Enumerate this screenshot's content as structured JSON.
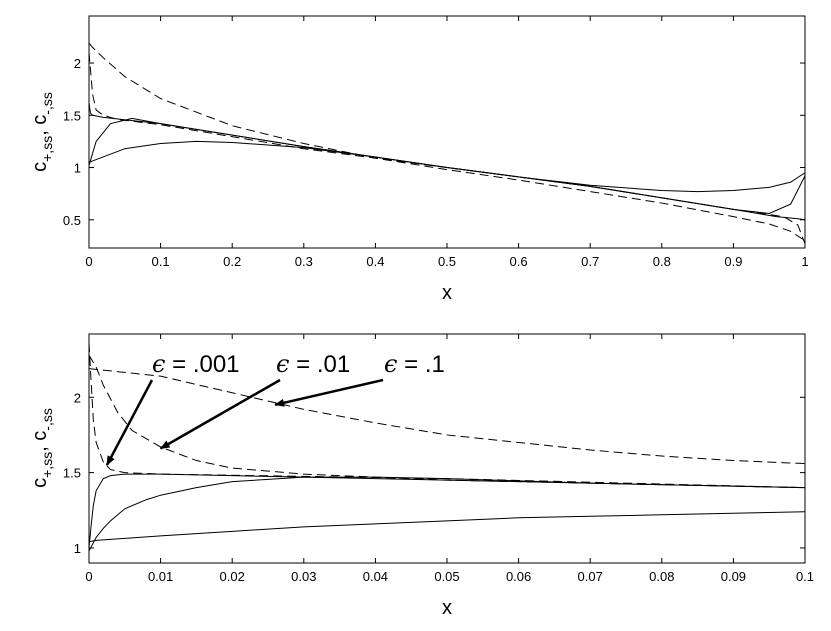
{
  "chart_data": [
    {
      "type": "line",
      "xlabel": "x",
      "ylabel": {
        "base1": "c",
        "sub1": "+,ss",
        "sep": ", ",
        "base2": "c",
        "sub2": "-,ss"
      },
      "xlim": [
        0,
        1
      ],
      "ylim": [
        0.23,
        2.45
      ],
      "xticks": [
        "0",
        "0.1",
        "0.2",
        "0.3",
        "0.4",
        "0.5",
        "0.6",
        "0.7",
        "0.8",
        "0.9",
        "1"
      ],
      "xtick_values": [
        0,
        0.1,
        0.2,
        0.3,
        0.4,
        0.5,
        0.6,
        0.7,
        0.8,
        0.9,
        1
      ],
      "yticks": [
        "0.5",
        "1",
        "1.5",
        "2"
      ],
      "ytick_values": [
        0.5,
        1,
        1.5,
        2
      ],
      "grid": false,
      "series": [
        {
          "style": "dashed",
          "x": [
            0,
            0.005,
            0.02,
            0.05,
            0.1,
            0.2,
            0.3,
            0.4,
            0.5,
            0.6,
            0.7,
            0.8,
            0.9,
            0.95,
            0.98,
            1
          ],
          "y": [
            2.19,
            2.15,
            2.05,
            1.87,
            1.66,
            1.4,
            1.23,
            1.09,
            0.98,
            0.88,
            0.77,
            0.66,
            0.53,
            0.46,
            0.39,
            0.3
          ]
        },
        {
          "style": "dashed",
          "x": [
            0,
            0.005,
            0.01,
            0.02,
            0.04,
            0.1,
            0.3,
            0.5,
            0.7,
            0.9,
            0.97,
            0.99,
            1
          ],
          "y": [
            2.1,
            1.7,
            1.55,
            1.5,
            1.46,
            1.41,
            1.18,
            1.0,
            0.82,
            0.6,
            0.53,
            0.45,
            0.27
          ]
        },
        {
          "style": "solid",
          "x": [
            0,
            0.002,
            0.005,
            0.02,
            0.1,
            0.3,
            0.5,
            0.7,
            0.9,
            0.96,
            0.99,
            1
          ],
          "y": [
            1.62,
            1.52,
            1.5,
            1.48,
            1.42,
            1.2,
            1.0,
            0.82,
            0.6,
            0.53,
            0.51,
            0.5
          ]
        },
        {
          "style": "solid",
          "x": [
            0,
            0.01,
            0.03,
            0.06,
            0.1,
            0.3,
            0.5,
            0.7,
            0.9,
            0.95,
            0.98,
            1
          ],
          "y": [
            1.02,
            1.25,
            1.42,
            1.47,
            1.42,
            1.2,
            1.0,
            0.82,
            0.6,
            0.56,
            0.65,
            0.92
          ]
        },
        {
          "style": "solid",
          "x": [
            0,
            0.05,
            0.1,
            0.15,
            0.2,
            0.3,
            0.4,
            0.5,
            0.6,
            0.7,
            0.8,
            0.85,
            0.9,
            0.95,
            0.98,
            1
          ],
          "y": [
            1.05,
            1.18,
            1.23,
            1.25,
            1.24,
            1.19,
            1.1,
            1.0,
            0.91,
            0.83,
            0.78,
            0.77,
            0.78,
            0.81,
            0.86,
            0.95
          ]
        }
      ]
    },
    {
      "type": "line",
      "xlabel": "x",
      "ylabel": {
        "base1": "c",
        "sub1": "+,ss",
        "sep": ", ",
        "base2": "c",
        "sub2": "-,ss"
      },
      "xlim": [
        0,
        0.1
      ],
      "ylim": [
        0.9,
        2.42
      ],
      "xticks": [
        "0",
        "0.01",
        "0.02",
        "0.03",
        "0.04",
        "0.05",
        "0.06",
        "0.07",
        "0.08",
        "0.09",
        "0.1"
      ],
      "xtick_values": [
        0,
        0.01,
        0.02,
        0.03,
        0.04,
        0.05,
        0.06,
        0.07,
        0.08,
        0.09,
        0.1
      ],
      "yticks": [
        "1",
        "1.5",
        "2"
      ],
      "ytick_values": [
        1,
        1.5,
        2
      ],
      "grid": false,
      "series": [
        {
          "style": "dashed",
          "x": [
            0,
            0.01,
            0.02,
            0.03,
            0.04,
            0.05,
            0.06,
            0.07,
            0.08,
            0.09,
            0.1
          ],
          "y": [
            2.19,
            2.14,
            2.03,
            1.92,
            1.83,
            1.75,
            1.7,
            1.65,
            1.61,
            1.58,
            1.56
          ]
        },
        {
          "style": "dashed",
          "x": [
            0,
            0.001,
            0.002,
            0.004,
            0.006,
            0.01,
            0.015,
            0.02,
            0.03,
            0.04,
            0.05,
            0.06,
            0.08,
            0.1
          ],
          "y": [
            2.28,
            2.2,
            2.08,
            1.9,
            1.78,
            1.67,
            1.58,
            1.53,
            1.49,
            1.47,
            1.45,
            1.44,
            1.42,
            1.4
          ]
        },
        {
          "style": "dashed",
          "x": [
            0,
            0.0003,
            0.0006,
            0.001,
            0.002,
            0.003,
            0.005,
            0.01,
            0.05,
            0.1
          ],
          "y": [
            2.36,
            2.1,
            1.85,
            1.7,
            1.57,
            1.52,
            1.5,
            1.49,
            1.46,
            1.4
          ]
        },
        {
          "style": "solid",
          "x": [
            0,
            0.0003,
            0.0006,
            0.001,
            0.002,
            0.003,
            0.005,
            0.01,
            0.03,
            0.05,
            0.1
          ],
          "y": [
            1.0,
            1.15,
            1.28,
            1.38,
            1.46,
            1.48,
            1.49,
            1.49,
            1.47,
            1.45,
            1.4
          ]
        },
        {
          "style": "solid",
          "x": [
            0,
            0.001,
            0.002,
            0.003,
            0.005,
            0.008,
            0.01,
            0.015,
            0.02,
            0.03,
            0.04,
            0.05,
            0.07,
            0.1
          ],
          "y": [
            0.98,
            1.07,
            1.13,
            1.18,
            1.26,
            1.32,
            1.35,
            1.4,
            1.44,
            1.47,
            1.47,
            1.46,
            1.43,
            1.4
          ]
        },
        {
          "style": "solid",
          "x": [
            0,
            0.001,
            0.01,
            0.02,
            0.03,
            0.04,
            0.05,
            0.06,
            0.07,
            0.08,
            0.09,
            0.1
          ],
          "y": [
            1.04,
            1.05,
            1.08,
            1.11,
            1.14,
            1.16,
            1.18,
            1.2,
            1.21,
            1.22,
            1.23,
            1.24
          ]
        }
      ],
      "annotations": [
        {
          "text": ".001",
          "symbol": "ϵ",
          "eq": " = ",
          "target": [
            0.0025,
            1.55
          ]
        },
        {
          "text": ".01",
          "symbol": "ϵ",
          "eq": " = ",
          "target": [
            0.01,
            1.66
          ]
        },
        {
          "text": ".1",
          "symbol": "ϵ",
          "eq": " = ",
          "target": [
            0.026,
            1.95
          ]
        }
      ]
    }
  ]
}
